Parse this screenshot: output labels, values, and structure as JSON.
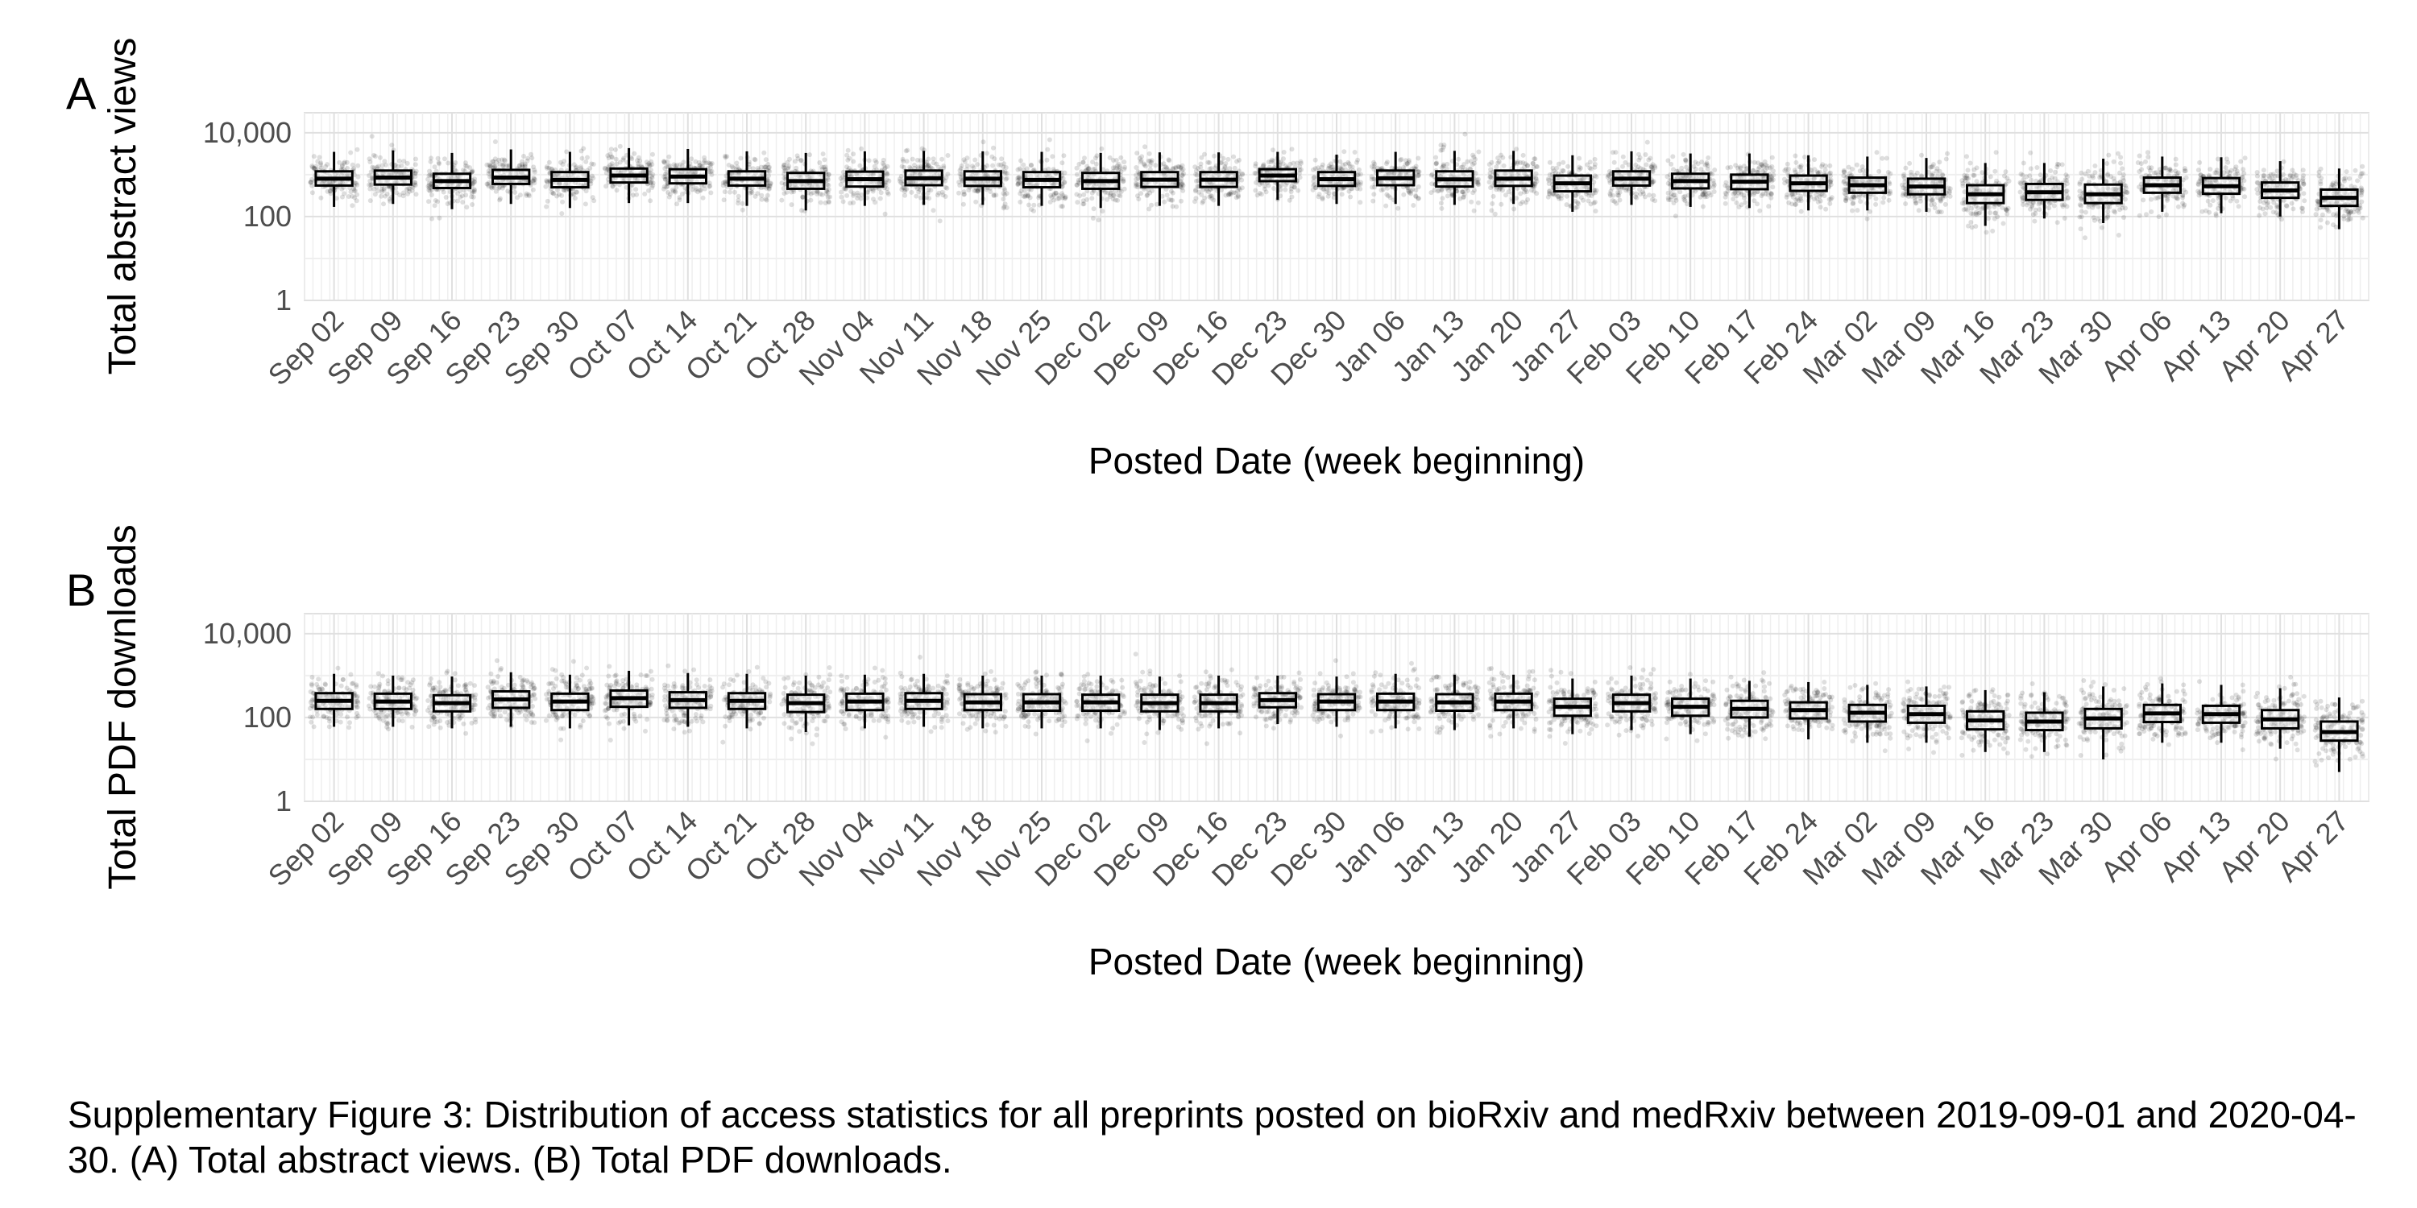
{
  "caption": "Supplementary Figure 3: Distribution of access statistics for all preprints posted on bioRxiv and medRxiv between 2019-09-01 and 2020-04-30. (A) Total abstract views. (B) Total PDF downloads.",
  "colors": {
    "panel_background": "#ffffff",
    "grid_major": "#e0e0e0",
    "grid_minor": "#efefef",
    "points": "#000000",
    "box_fill": "#ffffff",
    "box_stroke": "#000000",
    "tick_text": "#4d4d4d"
  },
  "chart_data": [
    {
      "type": "box",
      "panel_label": "A",
      "title": "",
      "xlabel": "Posted Date (week beginning)",
      "ylabel": "Total abstract views",
      "y_scale": "log10",
      "ylim": [
        1,
        30000
      ],
      "yticks": [
        1,
        100,
        10000
      ],
      "ytick_labels": [
        "1",
        "100",
        "10,000"
      ],
      "grid": true,
      "categories": [
        "Sep 02",
        "Sep 09",
        "Sep 16",
        "Sep 23",
        "Sep 30",
        "Oct 07",
        "Oct 14",
        "Oct 21",
        "Oct 28",
        "Nov 04",
        "Nov 11",
        "Nov 18",
        "Nov 25",
        "Dec 02",
        "Dec 09",
        "Dec 16",
        "Dec 23",
        "Dec 30",
        "Jan 06",
        "Jan 13",
        "Jan 20",
        "Jan 27",
        "Feb 03",
        "Feb 10",
        "Feb 17",
        "Feb 24",
        "Mar 02",
        "Mar 09",
        "Mar 16",
        "Mar 23",
        "Mar 30",
        "Apr 06",
        "Apr 13",
        "Apr 20",
        "Apr 27"
      ],
      "medians": [
        800,
        850,
        700,
        850,
        750,
        950,
        900,
        800,
        700,
        780,
        820,
        800,
        750,
        700,
        760,
        760,
        950,
        780,
        820,
        770,
        800,
        620,
        800,
        700,
        680,
        620,
        560,
        520,
        340,
        380,
        340,
        560,
        530,
        420,
        280
      ],
      "q1": [
        550,
        580,
        480,
        600,
        500,
        650,
        620,
        550,
        460,
        520,
        560,
        540,
        500,
        460,
        510,
        510,
        700,
        540,
        560,
        520,
        540,
        400,
        550,
        470,
        450,
        410,
        370,
        340,
        210,
        250,
        210,
        370,
        350,
        280,
        180
      ],
      "q3": [
        1200,
        1250,
        1050,
        1300,
        1150,
        1400,
        1350,
        1200,
        1100,
        1180,
        1250,
        1200,
        1150,
        1100,
        1150,
        1150,
        1350,
        1150,
        1250,
        1200,
        1250,
        950,
        1200,
        1050,
        1000,
        950,
        850,
        800,
        560,
        600,
        580,
        850,
        830,
        650,
        440
      ],
      "whisker_low": [
        170,
        200,
        150,
        200,
        160,
        210,
        210,
        180,
        140,
        180,
        190,
        190,
        180,
        160,
        180,
        180,
        250,
        200,
        200,
        190,
        200,
        130,
        190,
        170,
        160,
        140,
        140,
        130,
        60,
        90,
        70,
        130,
        120,
        100,
        50
      ],
      "whisker_high": [
        3500,
        3800,
        3300,
        4000,
        3500,
        4300,
        4100,
        3600,
        3300,
        3600,
        3700,
        3600,
        3500,
        3300,
        3400,
        3400,
        3500,
        3000,
        3500,
        3700,
        3700,
        2900,
        3600,
        3200,
        3200,
        2900,
        2700,
        2500,
        1900,
        1900,
        2400,
        2700,
        2600,
        2100,
        1400
      ]
    },
    {
      "type": "box",
      "panel_label": "B",
      "title": "",
      "xlabel": "Posted Date (week beginning)",
      "ylabel": "Total PDF downloads",
      "y_scale": "log10",
      "ylim": [
        1,
        30000
      ],
      "yticks": [
        1,
        100,
        10000
      ],
      "ytick_labels": [
        "1",
        "100",
        "10,000"
      ],
      "grid": true,
      "categories": [
        "Sep 02",
        "Sep 09",
        "Sep 16",
        "Sep 23",
        "Sep 30",
        "Oct 07",
        "Oct 14",
        "Oct 21",
        "Oct 28",
        "Nov 04",
        "Nov 11",
        "Nov 18",
        "Nov 25",
        "Dec 02",
        "Dec 09",
        "Dec 16",
        "Dec 23",
        "Dec 30",
        "Jan 06",
        "Jan 13",
        "Jan 20",
        "Jan 27",
        "Feb 03",
        "Feb 10",
        "Feb 17",
        "Feb 24",
        "Mar 02",
        "Mar 09",
        "Mar 16",
        "Mar 23",
        "Mar 30",
        "Apr 06",
        "Apr 13",
        "Apr 20",
        "Apr 27"
      ],
      "medians": [
        250,
        240,
        220,
        270,
        240,
        290,
        260,
        250,
        220,
        240,
        250,
        230,
        230,
        230,
        220,
        220,
        260,
        240,
        240,
        230,
        240,
        180,
        220,
        180,
        160,
        150,
        130,
        120,
        85,
        80,
        95,
        125,
        120,
        90,
        45
      ],
      "q1": [
        160,
        160,
        140,
        170,
        150,
        180,
        170,
        160,
        135,
        150,
        160,
        150,
        145,
        145,
        140,
        140,
        175,
        150,
        150,
        145,
        150,
        110,
        140,
        110,
        100,
        95,
        80,
        75,
        52,
        50,
        55,
        78,
        75,
        55,
        28
      ],
      "q3": [
        380,
        370,
        340,
        420,
        370,
        440,
        400,
        380,
        350,
        370,
        380,
        360,
        360,
        350,
        350,
        350,
        380,
        360,
        370,
        360,
        370,
        280,
        350,
        280,
        250,
        230,
        200,
        190,
        140,
        130,
        160,
        200,
        190,
        150,
        80
      ],
      "whisker_low": [
        60,
        60,
        55,
        60,
        55,
        65,
        60,
        55,
        45,
        55,
        60,
        55,
        55,
        55,
        50,
        55,
        70,
        60,
        55,
        50,
        55,
        40,
        50,
        40,
        35,
        30,
        25,
        25,
        15,
        15,
        10,
        25,
        25,
        18,
        5
      ],
      "whisker_high": [
        1100,
        1000,
        950,
        1200,
        1050,
        1300,
        1150,
        1100,
        1000,
        1050,
        1100,
        1000,
        1000,
        1000,
        950,
        1000,
        1000,
        950,
        1100,
        1050,
        1050,
        850,
        1000,
        850,
        750,
        700,
        600,
        550,
        450,
        400,
        550,
        650,
        600,
        500,
        300
      ]
    }
  ]
}
